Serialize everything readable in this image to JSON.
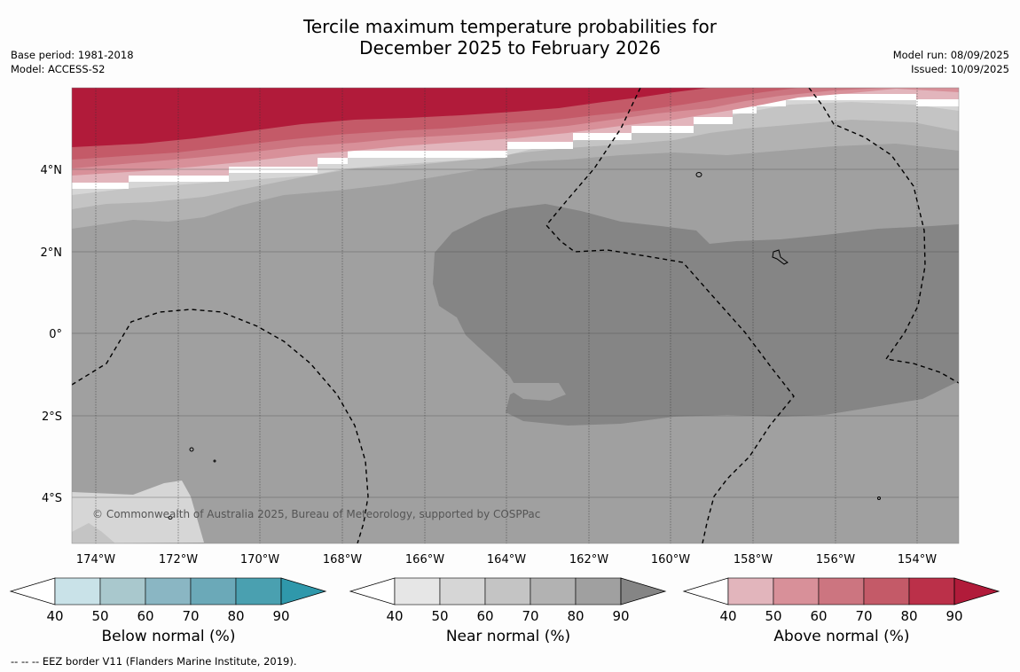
{
  "title": {
    "line1": "Tercile maximum temperature probabilities for",
    "line2": "December 2025 to February 2026"
  },
  "meta_left": {
    "base_period": "Base period: 1981-2018",
    "model": "Model: ACCESS-S2"
  },
  "meta_right": {
    "model_run": "Model run: 08/09/2025",
    "issued": "Issued: 10/09/2025"
  },
  "map": {
    "lat_ticks": [
      "4°N",
      "2°N",
      "0°",
      "2°S",
      "4°S"
    ],
    "lon_ticks": [
      "174°W",
      "172°W",
      "170°W",
      "168°W",
      "166°W",
      "164°W",
      "162°W",
      "160°W",
      "158°W",
      "156°W",
      "154°W"
    ],
    "copyright": "© Commonwealth of Australia 2025, Bureau of Meteorology, supported by COSPPac"
  },
  "colorbars": [
    {
      "label": "Below normal (%)",
      "ticks": [
        "40",
        "50",
        "60",
        "70",
        "80",
        "90"
      ],
      "colors": [
        "#ffffff",
        "#c9e2e8",
        "#a9c8cd",
        "#8ab6c3",
        "#6ba9b8",
        "#4aa0b0",
        "#2f98ab"
      ]
    },
    {
      "label": "Near normal (%)",
      "ticks": [
        "40",
        "50",
        "60",
        "70",
        "80",
        "90"
      ],
      "colors": [
        "#ffffff",
        "#e6e6e6",
        "#d6d6d6",
        "#c4c4c4",
        "#b2b2b2",
        "#a0a0a0",
        "#858585"
      ]
    },
    {
      "label": "Above normal (%)",
      "ticks": [
        "40",
        "50",
        "60",
        "70",
        "80",
        "90"
      ],
      "colors": [
        "#ffffff",
        "#e2b5bc",
        "#d89099",
        "#cc7580",
        "#c45a68",
        "#bb3049",
        "#b11b3a"
      ]
    }
  ],
  "footer": "--  --  -- EEZ border V11 (Flanders Marine Institute, 2019)."
}
